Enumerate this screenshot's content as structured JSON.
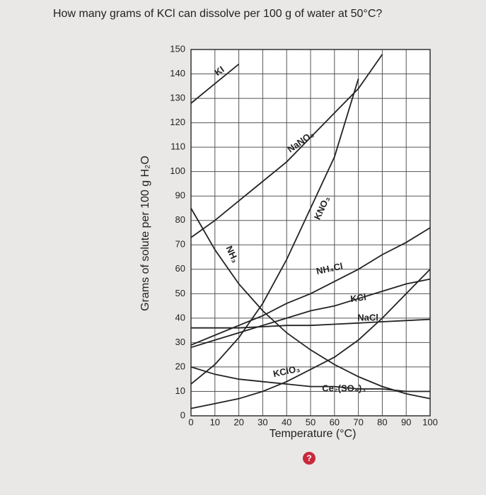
{
  "question": "How many grams of KCl can dissolve per 100 g of water at 50°C?",
  "help_icon": "?",
  "chart_data": {
    "type": "line",
    "x_label": "Temperature (°C)",
    "y_label": "Grams of solute per 100 g H₂O",
    "x": [
      0,
      10,
      20,
      30,
      40,
      50,
      60,
      70,
      80,
      90,
      100
    ],
    "xlim": [
      0,
      100
    ],
    "xticks": [
      0,
      10,
      20,
      30,
      40,
      50,
      60,
      70,
      80,
      90,
      100
    ],
    "ylim": [
      0,
      150
    ],
    "yticks": [
      0,
      10,
      20,
      30,
      40,
      50,
      60,
      70,
      80,
      90,
      100,
      110,
      120,
      130,
      140,
      150
    ],
    "grid": true,
    "series": [
      {
        "name": "KI",
        "color": "#222222",
        "values": [
          128,
          136,
          144,
          null,
          null,
          null,
          null,
          null,
          null,
          null,
          null
        ]
      },
      {
        "name": "NaNO₃",
        "color": "#222222",
        "values": [
          73,
          80,
          88,
          96,
          104,
          114,
          124,
          134,
          148,
          null,
          null
        ]
      },
      {
        "name": "KNO₃",
        "color": "#222222",
        "values": [
          13,
          21,
          32,
          46,
          64,
          85,
          106,
          138,
          null,
          null,
          null
        ]
      },
      {
        "name": "NH₃",
        "color": "#222222",
        "values": [
          85,
          68,
          54,
          43,
          34,
          27,
          21,
          16,
          12,
          9,
          7
        ]
      },
      {
        "name": "NH₄Cl",
        "color": "#222222",
        "values": [
          29,
          33,
          37,
          41,
          46,
          50,
          55,
          60,
          66,
          71,
          77
        ]
      },
      {
        "name": "KCl",
        "color": "#222222",
        "values": [
          28,
          31,
          34,
          37,
          40,
          43,
          45,
          48,
          51,
          54,
          56
        ]
      },
      {
        "name": "NaCl",
        "color": "#222222",
        "values": [
          36,
          36,
          36,
          36.5,
          37,
          37,
          37.5,
          38,
          38.5,
          39,
          39.5
        ]
      },
      {
        "name": "KClO₃",
        "color": "#222222",
        "values": [
          3,
          5,
          7,
          10,
          14,
          19,
          24,
          31,
          40,
          50,
          60
        ]
      },
      {
        "name": "Ce₂(SO₄)₃",
        "color": "#222222",
        "values": [
          20,
          17,
          15,
          14,
          13,
          12,
          12,
          11,
          11,
          10,
          10
        ]
      }
    ]
  }
}
